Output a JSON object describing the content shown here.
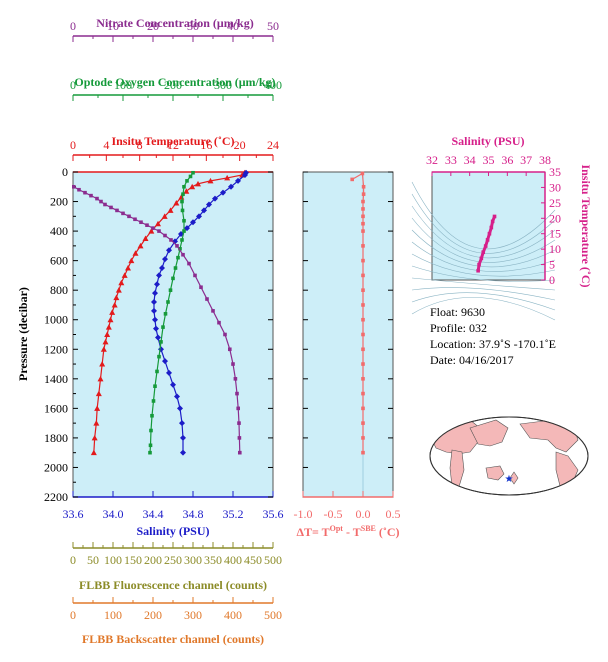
{
  "colors": {
    "nitrate": "#8b2c8f",
    "oxygen": "#159a3a",
    "temperature": "#e31a1c",
    "salinity": "#1c1cc8",
    "dt": "#f26b6b",
    "fluorescence": "#8c8c28",
    "backscatter": "#e0782a",
    "inset_salinity": "#d6208a",
    "plot_bg": "#cdeef8",
    "land": "#f4b8b8",
    "float_marker": "#1133cc"
  },
  "axes": {
    "nitrate": {
      "label": "Nitrate Concentration (μm/kg)",
      "ticks": [
        "0",
        "10",
        "20",
        "30",
        "40",
        "50"
      ],
      "range": [
        0,
        50
      ]
    },
    "oxygen": {
      "label": "Optode Oxygen Concentration (μm/kg)",
      "ticks": [
        "0",
        "100",
        "200",
        "300",
        "400"
      ],
      "range": [
        0,
        400
      ]
    },
    "temperature": {
      "label": "Insitu Temperature (˚C)",
      "ticks": [
        "0",
        "4",
        "8",
        "12",
        "16",
        "20",
        "24"
      ],
      "range": [
        0,
        24
      ]
    },
    "pressure": {
      "label": "Pressure (decibar)",
      "ticks": [
        "0",
        "200",
        "400",
        "600",
        "800",
        "1000",
        "1200",
        "1400",
        "1600",
        "1800",
        "2000",
        "2200"
      ],
      "range": [
        0,
        2200
      ]
    },
    "salinity": {
      "label": "Salinity (PSU)",
      "ticks": [
        "33.6",
        "34.0",
        "34.4",
        "34.8",
        "35.2",
        "35.6"
      ],
      "range": [
        33.6,
        35.6
      ]
    },
    "dt": {
      "label_prefix": "ΔT= T",
      "sup1": "Opt",
      "label_mid": " - T",
      "sup2": "SBE",
      "label_suffix": " (˚C)",
      "ticks": [
        "-1.0",
        "-0.5",
        "0.0",
        "0.5"
      ],
      "range": [
        -1.0,
        0.5
      ]
    },
    "fluorescence": {
      "label": "FLBB Fluorescence channel (counts)",
      "ticks": [
        "0",
        "50",
        "100",
        "150",
        "200",
        "250",
        "300",
        "350",
        "400",
        "450",
        "500"
      ],
      "range": [
        0,
        500
      ]
    },
    "backscatter": {
      "label": "FLBB Backscatter channel (counts)",
      "ticks": [
        "0",
        "100",
        "200",
        "300",
        "400",
        "500"
      ],
      "range": [
        0,
        500
      ]
    }
  },
  "inset": {
    "x_label": "Salinity (PSU)",
    "x_ticks": [
      "32",
      "33",
      "34",
      "35",
      "36",
      "37",
      "38"
    ],
    "x_range": [
      32,
      38
    ],
    "y_label": "Insitu Temperature (˚C)",
    "y_ticks": [
      "0",
      "5",
      "10",
      "15",
      "20",
      "25",
      "30",
      "35"
    ],
    "y_range": [
      0,
      35
    ]
  },
  "info": {
    "float": "Float:  9630",
    "profile": "Profile:  032",
    "location": "Location:  37.9˚S  -170.1˚E",
    "date": "Date:  04/16/2017"
  },
  "chart_data": {
    "type": "line",
    "y_axis": "pressure",
    "y_inverted": true,
    "series": [
      {
        "name": "Insitu Temperature",
        "x_axis": "temperature",
        "points": [
          [
            20.6,
            5
          ],
          [
            20.3,
            20
          ],
          [
            18.5,
            40
          ],
          [
            16.5,
            60
          ],
          [
            15.0,
            80
          ],
          [
            14.3,
            100
          ],
          [
            13.6,
            130
          ],
          [
            13.0,
            170
          ],
          [
            12.4,
            210
          ],
          [
            11.7,
            260
          ],
          [
            11.0,
            300
          ],
          [
            10.2,
            350
          ],
          [
            9.4,
            400
          ],
          [
            8.7,
            450
          ],
          [
            8.1,
            500
          ],
          [
            7.5,
            550
          ],
          [
            7.0,
            600
          ],
          [
            6.6,
            650
          ],
          [
            6.2,
            700
          ],
          [
            5.8,
            750
          ],
          [
            5.5,
            800
          ],
          [
            5.2,
            850
          ],
          [
            5.0,
            900
          ],
          [
            4.7,
            950
          ],
          [
            4.5,
            1000
          ],
          [
            4.3,
            1050
          ],
          [
            4.1,
            1100
          ],
          [
            3.9,
            1150
          ],
          [
            3.7,
            1200
          ],
          [
            3.5,
            1300
          ],
          [
            3.3,
            1400
          ],
          [
            3.1,
            1500
          ],
          [
            2.9,
            1600
          ],
          [
            2.8,
            1700
          ],
          [
            2.6,
            1800
          ],
          [
            2.5,
            1900
          ]
        ]
      },
      {
        "name": "Salinity",
        "x_axis": "salinity",
        "points": [
          [
            35.33,
            5
          ],
          [
            35.32,
            20
          ],
          [
            35.25,
            60
          ],
          [
            35.18,
            100
          ],
          [
            35.1,
            140
          ],
          [
            35.02,
            180
          ],
          [
            34.96,
            220
          ],
          [
            34.91,
            260
          ],
          [
            34.86,
            300
          ],
          [
            34.8,
            340
          ],
          [
            34.74,
            380
          ],
          [
            34.68,
            420
          ],
          [
            34.62,
            470
          ],
          [
            34.56,
            530
          ],
          [
            34.52,
            590
          ],
          [
            34.49,
            650
          ],
          [
            34.46,
            700
          ],
          [
            34.44,
            760
          ],
          [
            34.42,
            820
          ],
          [
            34.41,
            880
          ],
          [
            34.41,
            940
          ],
          [
            34.42,
            1000
          ],
          [
            34.43,
            1060
          ],
          [
            34.45,
            1120
          ],
          [
            34.48,
            1200
          ],
          [
            34.52,
            1280
          ],
          [
            34.56,
            1360
          ],
          [
            34.6,
            1440
          ],
          [
            34.64,
            1520
          ],
          [
            34.67,
            1600
          ],
          [
            34.69,
            1700
          ],
          [
            34.7,
            1800
          ],
          [
            34.7,
            1900
          ]
        ]
      },
      {
        "name": "Optode Oxygen Concentration",
        "x_axis": "oxygen",
        "points": [
          [
            240,
            5
          ],
          [
            235,
            30
          ],
          [
            228,
            60
          ],
          [
            222,
            100
          ],
          [
            220,
            150
          ],
          [
            218,
            200
          ],
          [
            219,
            260
          ],
          [
            222,
            330
          ],
          [
            222,
            400
          ],
          [
            218,
            460
          ],
          [
            214,
            520
          ],
          [
            210,
            580
          ],
          [
            205,
            650
          ],
          [
            200,
            720
          ],
          [
            195,
            800
          ],
          [
            190,
            880
          ],
          [
            185,
            960
          ],
          [
            180,
            1050
          ],
          [
            176,
            1150
          ],
          [
            172,
            1250
          ],
          [
            168,
            1350
          ],
          [
            164,
            1450
          ],
          [
            161,
            1550
          ],
          [
            158,
            1650
          ],
          [
            156,
            1750
          ],
          [
            155,
            1850
          ],
          [
            154,
            1900
          ]
        ]
      },
      {
        "name": "Nitrate Concentration",
        "x_axis": "nitrate",
        "points": [
          [
            0.2,
            100
          ],
          [
            1.5,
            120
          ],
          [
            3.0,
            140
          ],
          [
            4.5,
            160
          ],
          [
            6.0,
            180
          ],
          [
            7.0,
            200
          ],
          [
            8.0,
            220
          ],
          [
            9.5,
            240
          ],
          [
            11.0,
            260
          ],
          [
            12.5,
            280
          ],
          [
            14.0,
            300
          ],
          [
            15.5,
            320
          ],
          [
            17.0,
            340
          ],
          [
            18.5,
            360
          ],
          [
            20.0,
            380
          ],
          [
            21.5,
            400
          ],
          [
            23.0,
            430
          ],
          [
            24.5,
            460
          ],
          [
            26.0,
            500
          ],
          [
            27.5,
            560
          ],
          [
            29.0,
            620
          ],
          [
            30.5,
            700
          ],
          [
            32.0,
            780
          ],
          [
            33.5,
            860
          ],
          [
            35.0,
            940
          ],
          [
            36.5,
            1020
          ],
          [
            38.0,
            1100
          ],
          [
            39.2,
            1200
          ],
          [
            40.0,
            1300
          ],
          [
            40.6,
            1400
          ],
          [
            41.0,
            1500
          ],
          [
            41.3,
            1600
          ],
          [
            41.5,
            1700
          ],
          [
            41.6,
            1800
          ],
          [
            41.7,
            1900
          ]
        ]
      },
      {
        "name": "ΔT",
        "x_axis": "dt",
        "points": [
          [
            -0.18,
            50
          ],
          [
            -0.01,
            10
          ],
          [
            0.01,
            100
          ],
          [
            0.01,
            150
          ],
          [
            0.0,
            200
          ],
          [
            0.0,
            250
          ],
          [
            0.0,
            300
          ],
          [
            0.0,
            350
          ],
          [
            0.0,
            400
          ],
          [
            0.0,
            500
          ],
          [
            0.0,
            600
          ],
          [
            0.0,
            700
          ],
          [
            0.0,
            800
          ],
          [
            0.0,
            900
          ],
          [
            0.0,
            1000
          ],
          [
            0.0,
            1100
          ],
          [
            0.0,
            1200
          ],
          [
            0.0,
            1300
          ],
          [
            0.0,
            1400
          ],
          [
            0.0,
            1500
          ],
          [
            0.0,
            1600
          ],
          [
            0.0,
            1700
          ],
          [
            0.0,
            1800
          ],
          [
            0.0,
            1900
          ]
        ]
      },
      {
        "name": "T-S",
        "x_axis": "inset_salinity",
        "points": [
          [
            34.45,
            3
          ],
          [
            34.5,
            5
          ],
          [
            34.62,
            7
          ],
          [
            34.72,
            9
          ],
          [
            34.85,
            11
          ],
          [
            34.95,
            13
          ],
          [
            35.05,
            15
          ],
          [
            35.15,
            17
          ],
          [
            35.22,
            19
          ],
          [
            35.32,
            20.6
          ]
        ]
      }
    ]
  }
}
